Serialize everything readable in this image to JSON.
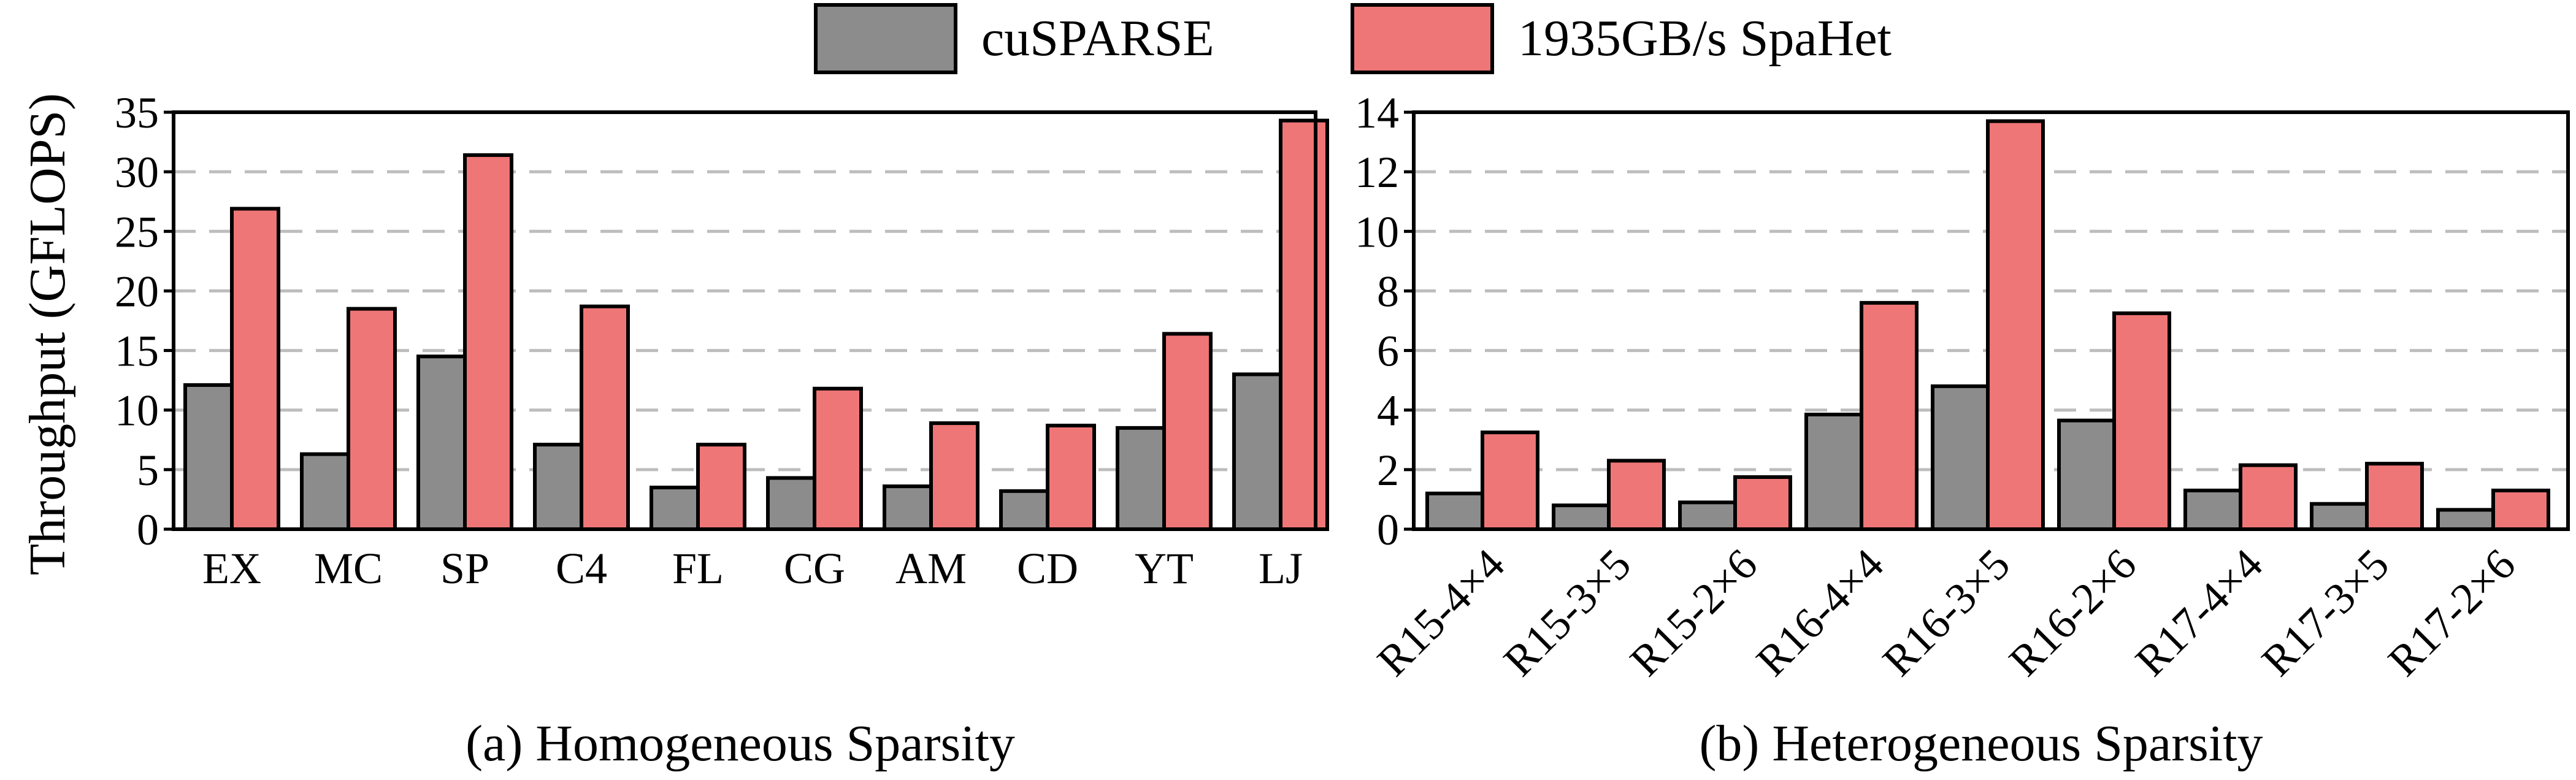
{
  "legend": [
    {
      "name": "cuSPARSE",
      "color": "#8c8c8c"
    },
    {
      "name": "1935GB/s SpaHet",
      "color": "#ef7676"
    }
  ],
  "ylabel": "Throughput (GFLOPS)",
  "chart_data": [
    {
      "type": "bar",
      "title": "(a) Homogeneous Sparsity",
      "ylabel": "Throughput (GFLOPS)",
      "ylim": [
        0,
        35
      ],
      "yticks": [
        0,
        5,
        10,
        15,
        20,
        25,
        30,
        35
      ],
      "grid": true,
      "legend_position": "top-center",
      "categories": [
        "EX",
        "MC",
        "SP",
        "C4",
        "FL",
        "CG",
        "AM",
        "CD",
        "YT",
        "LJ"
      ],
      "series": [
        {
          "name": "cuSPARSE",
          "color": "#8c8c8c",
          "values": [
            12.1,
            6.3,
            14.5,
            7.1,
            3.5,
            4.3,
            3.6,
            3.2,
            8.5,
            13.0
          ]
        },
        {
          "name": "1935GB/s SpaHet",
          "color": "#ef7676",
          "values": [
            26.9,
            18.5,
            31.4,
            18.7,
            7.1,
            11.8,
            8.9,
            8.7,
            16.4,
            34.3
          ]
        }
      ]
    },
    {
      "type": "bar",
      "title": "(b) Heterogeneous Sparsity",
      "ylim": [
        0,
        14
      ],
      "yticks": [
        0,
        2,
        4,
        6,
        8,
        10,
        12,
        14
      ],
      "grid": true,
      "categories": [
        "R15-4×4",
        "R15-3×5",
        "R15-2×6",
        "R16-4×4",
        "R16-3×5",
        "R16-2×6",
        "R17-4×4",
        "R17-3×5",
        "R17-2×6"
      ],
      "series": [
        {
          "name": "cuSPARSE",
          "color": "#8c8c8c",
          "values": [
            1.2,
            0.8,
            0.9,
            3.85,
            4.8,
            3.65,
            1.3,
            0.85,
            0.65
          ]
        },
        {
          "name": "1935GB/s SpaHet",
          "color": "#ef7676",
          "values": [
            3.25,
            2.3,
            1.75,
            7.6,
            13.7,
            7.25,
            2.15,
            2.2,
            1.3
          ]
        }
      ]
    }
  ]
}
